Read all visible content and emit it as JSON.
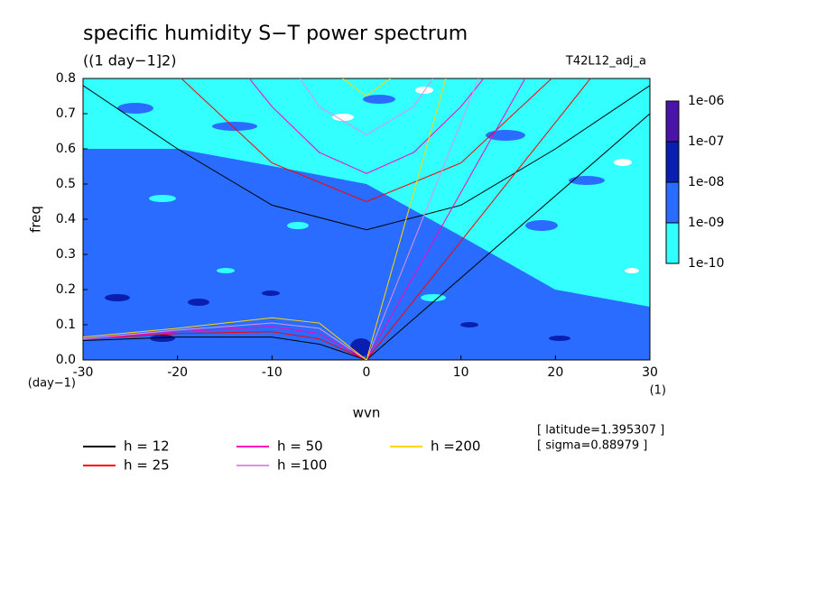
{
  "chart_data": {
    "type": "line",
    "title": "specific humidity S−T power spectrum",
    "subtitle": "((1 day−1]2)",
    "run_label": "T42L12_adj_a",
    "x_label": "wvn",
    "y_label": "freq",
    "x_unit": "(1)",
    "y_unit": "(day−1)",
    "annotations": [
      "[ latitude=1.395307 ]",
      "[ sigma=0.88979 ]"
    ],
    "xlim": [
      -30,
      30
    ],
    "ylim": [
      0,
      0.8
    ],
    "xticks": [
      -30,
      -20,
      -10,
      0,
      10,
      20,
      30
    ],
    "yticks": [
      {
        "value": 0,
        "label": "0.0"
      },
      {
        "value": 0.1,
        "label": "0.1"
      },
      {
        "value": 0.2,
        "label": "0.2"
      },
      {
        "value": 0.3,
        "label": "0.3"
      },
      {
        "value": 0.4,
        "label": "0.4"
      },
      {
        "value": 0.5,
        "label": "0.5"
      },
      {
        "value": 0.6,
        "label": "0.6"
      },
      {
        "value": 0.7,
        "label": "0.7"
      },
      {
        "value": 0.8,
        "label": "0.8"
      }
    ],
    "colorbar": {
      "log": true,
      "ticks": [
        {
          "value": 1e-10,
          "label": "1e-10"
        },
        {
          "value": 1e-09,
          "label": "1e-09"
        },
        {
          "value": 1e-08,
          "label": "1e-08"
        },
        {
          "value": 1e-07,
          "label": "1e-07"
        },
        {
          "value": 1e-06,
          "label": "1e-06"
        }
      ],
      "colors": [
        "#33ffff",
        "#2a6cff",
        "#0a1eb0",
        "#4a14a8"
      ]
    },
    "series": [
      {
        "name": "h = 12",
        "color": "#000000",
        "x": [
          -30,
          -20,
          -10,
          0,
          10,
          20,
          30,
          null,
          0,
          30,
          null,
          -30,
          -20,
          -10,
          -5,
          0
        ],
        "values": [
          0.78,
          0.6,
          0.44,
          0.37,
          0.44,
          0.6,
          0.78,
          null,
          0,
          0.7,
          null,
          0.055,
          0.065,
          0.065,
          0.045,
          0
        ]
      },
      {
        "name": "h = 25",
        "color": "#ff0000",
        "x": [
          -20,
          -10,
          0,
          10,
          20,
          null,
          0,
          24,
          null,
          -30,
          -20,
          -10,
          -5,
          0
        ],
        "values": [
          0.81,
          0.56,
          0.45,
          0.56,
          0.81,
          null,
          0,
          0.81,
          null,
          0.06,
          0.075,
          0.08,
          0.06,
          0
        ]
      },
      {
        "name": "h = 50",
        "color": "#ff00c0",
        "x": [
          -13,
          -10,
          -5,
          0,
          5,
          10,
          13,
          null,
          0,
          17,
          null,
          -30,
          -20,
          -10,
          -5,
          0
        ],
        "values": [
          0.82,
          0.72,
          0.59,
          0.53,
          0.59,
          0.72,
          0.82,
          null,
          0,
          0.81,
          null,
          0.06,
          0.08,
          0.095,
          0.075,
          0
        ]
      },
      {
        "name": "h =100",
        "color": "#e090e0",
        "x": [
          -8,
          -5,
          0,
          5,
          8,
          null,
          0,
          12,
          null,
          -30,
          -20,
          -10,
          -5,
          0
        ],
        "values": [
          0.84,
          0.72,
          0.64,
          0.72,
          0.84,
          null,
          0,
          0.81,
          null,
          0.06,
          0.085,
          0.105,
          0.09,
          0
        ]
      },
      {
        "name": "h =200",
        "color": "#ffd700",
        "x": [
          -3,
          0,
          3,
          null,
          0,
          8.5,
          null,
          -30,
          -20,
          -10,
          -5,
          0
        ],
        "values": [
          0.81,
          0.75,
          0.81,
          null,
          0,
          0.81,
          null,
          0.065,
          0.09,
          0.12,
          0.105,
          0
        ]
      }
    ]
  }
}
